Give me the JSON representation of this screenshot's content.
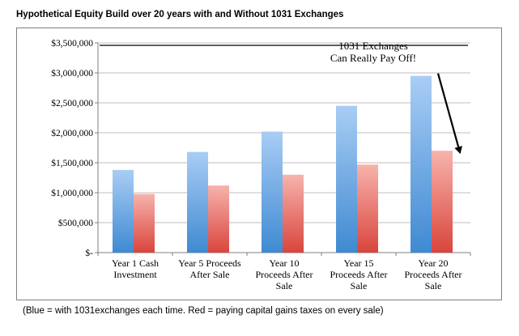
{
  "chart_data": {
    "type": "bar",
    "title": "Hypothetical Equity Build over 20 years with and Without 1031 Exchanges",
    "categories": [
      [
        "Year 1 Cash",
        "Investment"
      ],
      [
        "Year 5 Proceeds",
        "After Sale"
      ],
      [
        "Year 10",
        "Proceeds After",
        "Sale"
      ],
      [
        "Year 15",
        "Proceeds After",
        "Sale"
      ],
      [
        "Year 20",
        "Proceeds After",
        "Sale"
      ]
    ],
    "series": [
      {
        "values": [
          1380000,
          1680000,
          2020000,
          2450000,
          2950000
        ],
        "color": "#5b9bd5"
      },
      {
        "values": [
          980000,
          1120000,
          1300000,
          1470000,
          1700000
        ],
        "color": "#e5534b"
      }
    ],
    "ylim": [
      0,
      3500000
    ],
    "yticks": [
      {
        "value": 0,
        "label": "$-"
      },
      {
        "value": 500000,
        "label": "$500,000"
      },
      {
        "value": 1000000,
        "label": "$1,000,000"
      },
      {
        "value": 1500000,
        "label": "$1,500,000"
      },
      {
        "value": 2000000,
        "label": "$2,000,000"
      },
      {
        "value": 2500000,
        "label": "$2,500,000"
      },
      {
        "value": 3000000,
        "label": "$3,000,000"
      },
      {
        "value": 3500000,
        "label": "$3,500,000"
      }
    ],
    "grid": true,
    "legend": "none",
    "annotation": {
      "lines": [
        "1031 Exchanges",
        "Can Really Pay Off!"
      ],
      "arrow_from": {
        "category": 4,
        "value": 2950000
      },
      "arrow_to": {
        "category": 4,
        "value": 1700000
      }
    }
  },
  "footnote": "(Blue = with 1031exchanges each time.  Red = paying capital gains taxes on every sale)"
}
